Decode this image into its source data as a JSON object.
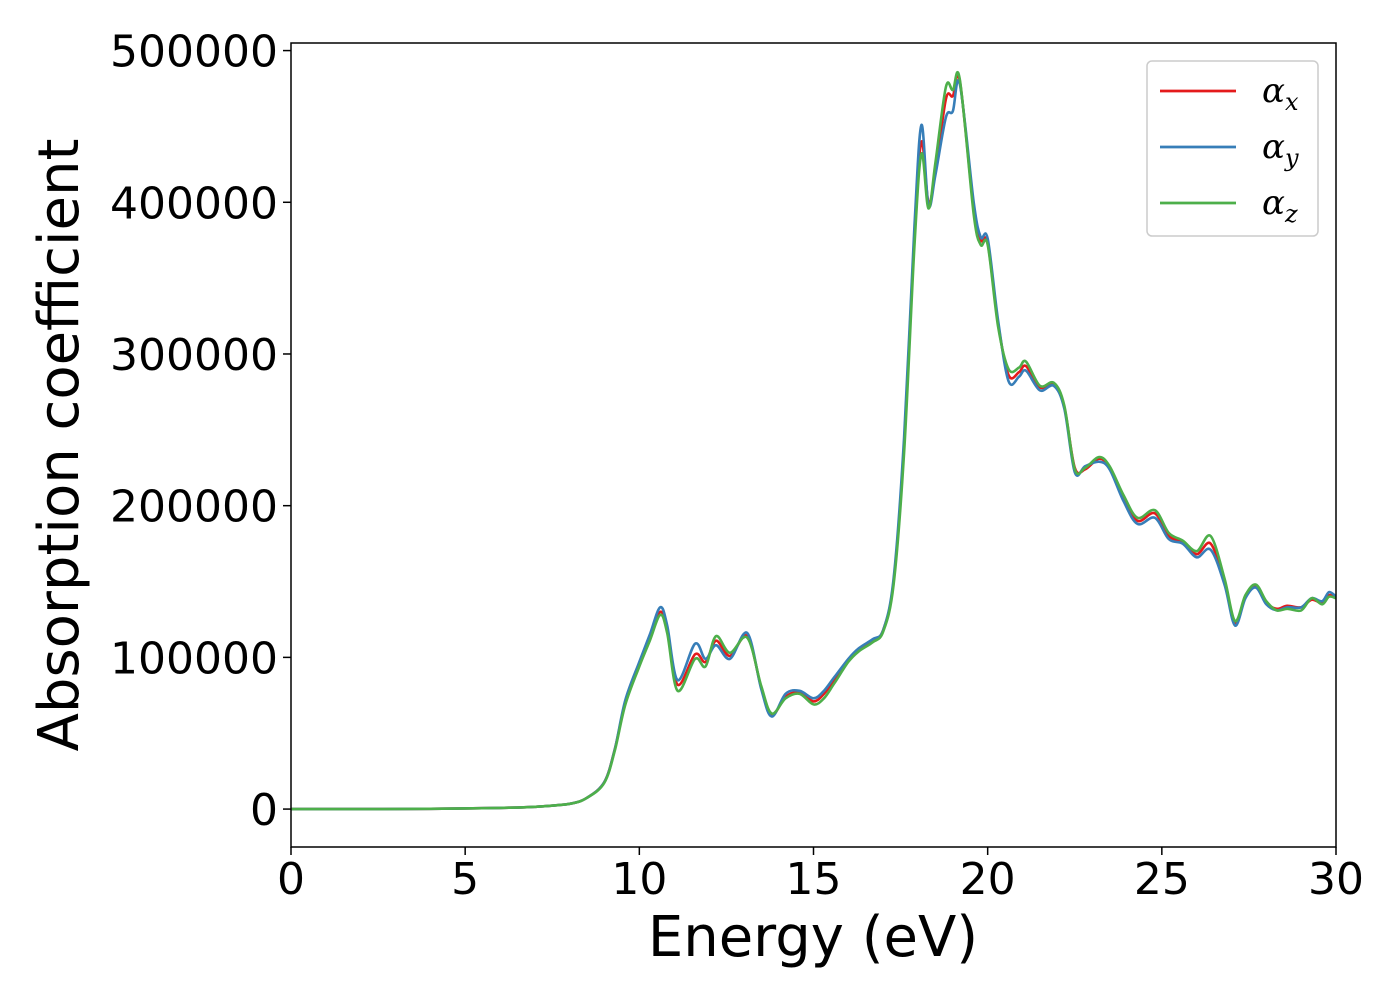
{
  "chart_data": {
    "type": "line",
    "xlabel": "Energy (eV)",
    "ylabel": "Absorption coefficient",
    "xlim": [
      0,
      30
    ],
    "ylim": [
      -25000,
      505000
    ],
    "xticks": [
      0,
      5,
      10,
      15,
      20,
      25,
      30
    ],
    "yticks": [
      0,
      100000,
      200000,
      300000,
      400000,
      500000
    ],
    "grid": false,
    "legend_position": "top-right",
    "x": [
      0,
      2,
      4,
      6,
      7,
      8,
      8.5,
      9,
      9.3,
      9.6,
      10,
      10.3,
      10.6,
      10.8,
      11.1,
      11.6,
      11.9,
      12.2,
      12.6,
      13.1,
      13.5,
      13.8,
      14.2,
      14.6,
      15,
      15.3,
      15.6,
      16,
      16.3,
      16.7,
      17,
      17.3,
      17.6,
      17.9,
      18.1,
      18.3,
      18.5,
      18.8,
      19,
      19.2,
      19.6,
      19.8,
      20,
      20.3,
      20.6,
      20.9,
      21.1,
      21.5,
      21.9,
      22.2,
      22.5,
      22.8,
      23.2,
      23.5,
      23.9,
      24.3,
      24.8,
      25.2,
      25.6,
      26,
      26.4,
      26.8,
      27.1,
      27.4,
      27.7,
      28,
      28.3,
      28.6,
      29,
      29.3,
      29.6,
      29.8,
      30
    ],
    "series": [
      {
        "name": "α_x",
        "color": "#e41a1c",
        "values": [
          0,
          0,
          200,
          800,
          1500,
          3500,
          7500,
          18000,
          40000,
          70000,
          95000,
          112000,
          130000,
          118000,
          82000,
          102000,
          97000,
          111000,
          101000,
          114000,
          80000,
          62000,
          74000,
          77000,
          71000,
          76000,
          85000,
          98000,
          105000,
          111000,
          118000,
          150000,
          240000,
          380000,
          440000,
          400000,
          420000,
          468000,
          470000,
          480000,
          395000,
          375000,
          373000,
          320000,
          286000,
          288000,
          292000,
          278000,
          280000,
          265000,
          225000,
          224000,
          231000,
          225000,
          205000,
          190000,
          195000,
          180000,
          176000,
          168000,
          175000,
          150000,
          123000,
          140000,
          147000,
          136000,
          132000,
          134000,
          133000,
          138000,
          136000,
          141000,
          139000
        ]
      },
      {
        "name": "α_y",
        "color": "#377eb8",
        "values": [
          0,
          0,
          200,
          800,
          1500,
          3500,
          7500,
          18000,
          40000,
          72000,
          97000,
          115000,
          133000,
          121000,
          85000,
          109000,
          99000,
          108000,
          99000,
          116000,
          79000,
          61000,
          76000,
          78000,
          73000,
          78000,
          87000,
          99000,
          106000,
          112000,
          118000,
          152000,
          245000,
          385000,
          451000,
          398000,
          418000,
          456000,
          460000,
          478000,
          400000,
          377000,
          376000,
          322000,
          282000,
          285000,
          289000,
          276000,
          279000,
          264000,
          222000,
          226000,
          229000,
          224000,
          203000,
          188000,
          192000,
          178000,
          175000,
          166000,
          171000,
          148000,
          121000,
          139000,
          146000,
          135000,
          131000,
          133000,
          133000,
          139000,
          137000,
          143000,
          140000
        ]
      },
      {
        "name": "α_z",
        "color": "#4daf4a",
        "values": [
          0,
          0,
          200,
          800,
          1500,
          3500,
          7500,
          17500,
          39000,
          69000,
          94000,
          111000,
          128000,
          116000,
          78000,
          99000,
          94000,
          114000,
          103000,
          113000,
          81000,
          63000,
          73000,
          76000,
          69000,
          73000,
          83000,
          97000,
          104000,
          110000,
          117000,
          148000,
          235000,
          372000,
          432000,
          396000,
          426000,
          476000,
          474000,
          481000,
          392000,
          372000,
          372000,
          318000,
          290000,
          291000,
          295000,
          279000,
          281000,
          266000,
          224000,
          225000,
          232000,
          226000,
          207000,
          192000,
          197000,
          182000,
          177000,
          170000,
          180000,
          152000,
          124000,
          141000,
          148000,
          137000,
          131000,
          132000,
          131000,
          139000,
          135000,
          140000,
          139000
        ]
      }
    ]
  },
  "legend": {
    "items": [
      {
        "base": "α",
        "sub": "x",
        "color": "#e41a1c"
      },
      {
        "base": "α",
        "sub": "y",
        "color": "#377eb8"
      },
      {
        "base": "α",
        "sub": "z",
        "color": "#4daf4a"
      }
    ]
  }
}
